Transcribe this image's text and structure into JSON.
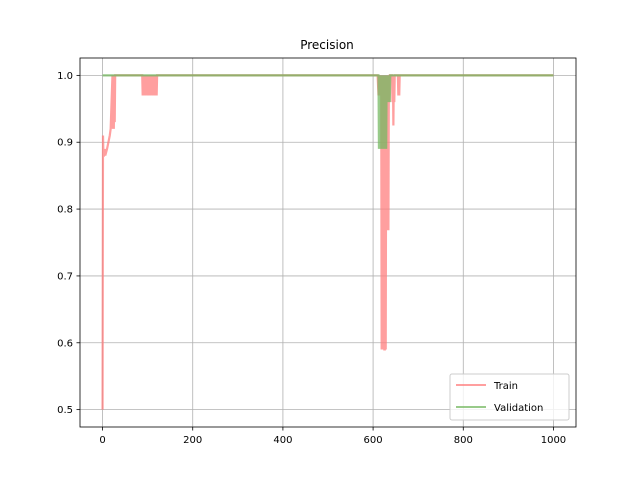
{
  "chart_data": {
    "type": "line",
    "title": "Precision",
    "xlabel": "",
    "ylabel": "",
    "xlim": [
      -50,
      1050
    ],
    "ylim": [
      0.474,
      1.026
    ],
    "xticks": [
      0,
      200,
      400,
      600,
      800,
      1000
    ],
    "xtick_labels": [
      "0",
      "200",
      "400",
      "600",
      "800",
      "1000"
    ],
    "yticks": [
      0.5,
      0.6,
      0.7,
      0.8,
      0.9,
      1.0
    ],
    "ytick_labels": [
      "0.5",
      "0.6",
      "0.7",
      "0.8",
      "0.9",
      "1.0"
    ],
    "grid": true,
    "legend_position": "lower-right",
    "series": [
      {
        "name": "Train",
        "color": "#ff7f7f",
        "x": [
          0,
          1,
          2,
          3,
          4,
          5,
          6,
          8,
          10,
          13,
          16,
          18,
          20,
          22,
          23,
          24,
          25,
          26,
          27,
          28,
          29,
          30,
          88,
          89,
          90,
          91,
          95,
          96,
          100,
          101,
          105,
          106,
          110,
          111,
          115,
          116,
          119,
          120,
          121,
          610,
          612,
          613,
          615,
          618,
          619,
          620,
          621,
          622,
          623,
          624,
          625,
          626,
          627,
          628,
          629,
          630,
          631,
          632,
          633,
          634,
          635,
          636,
          637,
          638,
          640,
          642,
          643,
          644,
          645,
          646,
          647,
          648,
          650,
          651,
          652,
          655,
          656,
          657,
          658,
          659,
          660,
          661,
          662,
          1000
        ],
        "y": [
          0.5,
          0.91,
          0.88,
          0.88,
          0.885,
          0.89,
          0.88,
          0.885,
          0.89,
          0.9,
          0.91,
          0.92,
          0.96,
          1.0,
          0.92,
          1.0,
          0.92,
          1.0,
          0.93,
          1.0,
          1.0,
          1.0,
          1.0,
          0.97,
          1.0,
          0.97,
          1.0,
          0.97,
          1.0,
          0.97,
          1.0,
          0.97,
          1.0,
          0.97,
          1.0,
          0.97,
          1.0,
          0.97,
          1.0,
          1.0,
          0.97,
          1.0,
          0.97,
          1.0,
          0.59,
          1.0,
          0.59,
          1.0,
          0.59,
          1.0,
          0.59,
          0.59,
          1.0,
          0.59,
          0.93,
          1.0,
          0.96,
          1.0,
          0.77,
          0.77,
          1.0,
          0.96,
          1.0,
          1.0,
          1.0,
          1.0,
          0.96,
          1.0,
          0.925,
          1.0,
          0.96,
          1.0,
          1.0,
          1.0,
          1.0,
          1.0,
          0.97,
          1.0,
          0.97,
          1.0,
          1.0,
          1.0,
          1.0,
          1.0
        ]
      },
      {
        "name": "Validation",
        "color": "#76b861",
        "x": [
          0,
          612,
          613,
          614,
          615,
          616,
          617,
          618,
          619,
          620,
          621,
          622,
          623,
          624,
          625,
          626,
          627,
          628,
          629,
          630,
          631,
          632,
          633,
          634,
          635,
          636,
          637,
          638,
          1000
        ],
        "y": [
          1.0,
          1.0,
          0.89,
          1.0,
          0.89,
          1.0,
          0.89,
          1.0,
          0.89,
          1.0,
          0.89,
          1.0,
          0.89,
          1.0,
          0.89,
          1.0,
          0.89,
          1.0,
          0.89,
          1.0,
          0.96,
          1.0,
          0.96,
          1.0,
          0.96,
          1.0,
          0.96,
          1.0,
          1.0
        ]
      }
    ]
  }
}
